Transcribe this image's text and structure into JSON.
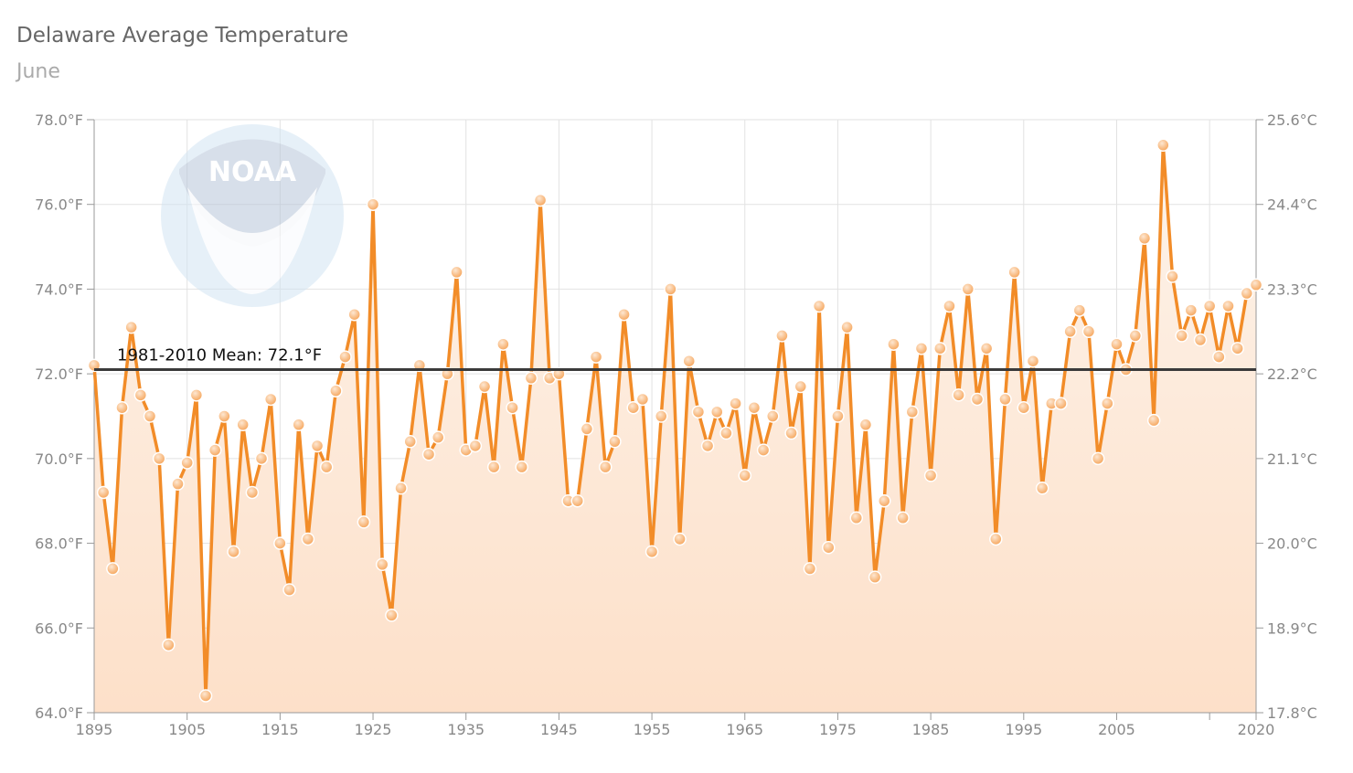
{
  "title": "Delaware Average Temperature",
  "subtitle": "June",
  "chart_data": {
    "type": "line",
    "title": "Delaware Average Temperature",
    "subtitle": "June",
    "x_start": 1895,
    "x_end": 2020,
    "ylim": [
      64,
      78
    ],
    "y_ticks": [
      "64.0°F",
      "66.0°F",
      "68.0°F",
      "70.0°F",
      "72.0°F",
      "74.0°F",
      "76.0°F",
      "78.0°F"
    ],
    "y_tick_values": [
      64,
      66,
      68,
      70,
      72,
      74,
      76,
      78
    ],
    "y2_ticks": [
      "17.8°C",
      "18.9°C",
      "20.0°C",
      "21.1°C",
      "22.2°C",
      "23.3°C",
      "24.4°C",
      "25.6°C"
    ],
    "x_ticks": [
      "1895",
      "1905",
      "1915",
      "1925",
      "1935",
      "1945",
      "1955",
      "1965",
      "1975",
      "1985",
      "1995",
      "2005",
      "2020"
    ],
    "x_tick_values": [
      1895,
      1905,
      1915,
      1925,
      1935,
      1945,
      1955,
      1965,
      1975,
      1985,
      1995,
      2005,
      2020
    ],
    "grid": true,
    "mean_value": 72.1,
    "mean_label": "1981-2010 Mean: 72.1°F",
    "series_color": "#f28c28",
    "mean_color": "#3a3a3a",
    "values": [
      72.2,
      69.2,
      67.4,
      71.2,
      73.1,
      71.5,
      71.0,
      70.0,
      65.6,
      69.4,
      69.9,
      71.5,
      64.4,
      70.2,
      71.0,
      67.8,
      70.8,
      69.2,
      70.0,
      71.4,
      68.0,
      66.9,
      70.8,
      68.1,
      70.3,
      69.8,
      71.6,
      72.4,
      73.4,
      68.5,
      76.0,
      67.5,
      66.3,
      69.3,
      70.4,
      72.2,
      70.1,
      70.5,
      72.0,
      74.4,
      70.2,
      70.3,
      71.7,
      69.8,
      72.7,
      71.2,
      69.8,
      71.9,
      76.1,
      71.9,
      72.0,
      69.0,
      69.0,
      70.7,
      72.4,
      69.8,
      70.4,
      73.4,
      71.2,
      71.4,
      67.8,
      71.0,
      74.0,
      68.1,
      72.3,
      71.1,
      70.3,
      71.1,
      70.6,
      71.3,
      69.6,
      71.2,
      70.2,
      71.0,
      72.9,
      70.6,
      71.7,
      67.4,
      73.6,
      67.9,
      71.0,
      73.1,
      68.6,
      70.8,
      67.2,
      69.0,
      72.7,
      68.6,
      71.1,
      72.6,
      69.6,
      72.6,
      73.6,
      71.5,
      74.0,
      71.4,
      72.6,
      68.1,
      71.4,
      74.4,
      71.2,
      72.3,
      69.3,
      71.3,
      71.3,
      73.0,
      73.5,
      73.0,
      70.0,
      71.3,
      72.7,
      72.1,
      72.9,
      75.2,
      70.9,
      77.4,
      74.3,
      72.9,
      73.5,
      72.8,
      73.6,
      72.4,
      73.6,
      72.6,
      73.9,
      74.1
    ]
  }
}
